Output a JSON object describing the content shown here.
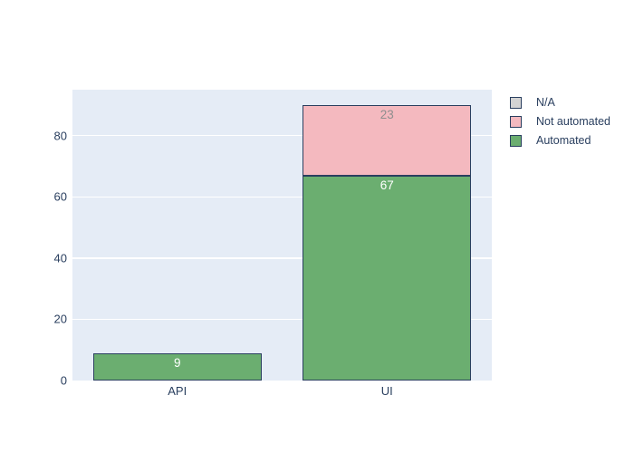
{
  "chart_data": {
    "type": "bar",
    "stacked": true,
    "orientation": "vertical",
    "title": "",
    "xlabel": "",
    "ylabel": "",
    "categories": [
      "API",
      "UI"
    ],
    "series": [
      {
        "name": "Automated",
        "color": "#6bae70",
        "label_color": "#ffffff",
        "values": [
          9,
          67
        ]
      },
      {
        "name": "Not automated",
        "color": "#f4b9bf",
        "label_color": "#8e8e8e",
        "values": [
          0,
          23
        ]
      },
      {
        "name": "N/A",
        "color": "#d3d3d3",
        "label_color": "#2a3f5f",
        "values": [
          0,
          0
        ]
      }
    ],
    "bar_value_labels": {
      "API": {
        "Automated": "9"
      },
      "UI": {
        "Automated": "67",
        "Not automated": "23"
      }
    },
    "yticks": [
      0,
      20,
      40,
      60,
      80
    ],
    "ylim": [
      0,
      95
    ],
    "grid": true,
    "legend_position": "right",
    "legend_items": [
      "N/A",
      "Not automated",
      "Automated"
    ],
    "colors": {
      "plot_background": "#e5ecf6",
      "grid_line": "#ffffff",
      "bar_border": "#2a3f5f",
      "axis_text": "#2a3f5f",
      "legend_text": "#2a3f5f",
      "figure_background": "#ffffff"
    }
  }
}
